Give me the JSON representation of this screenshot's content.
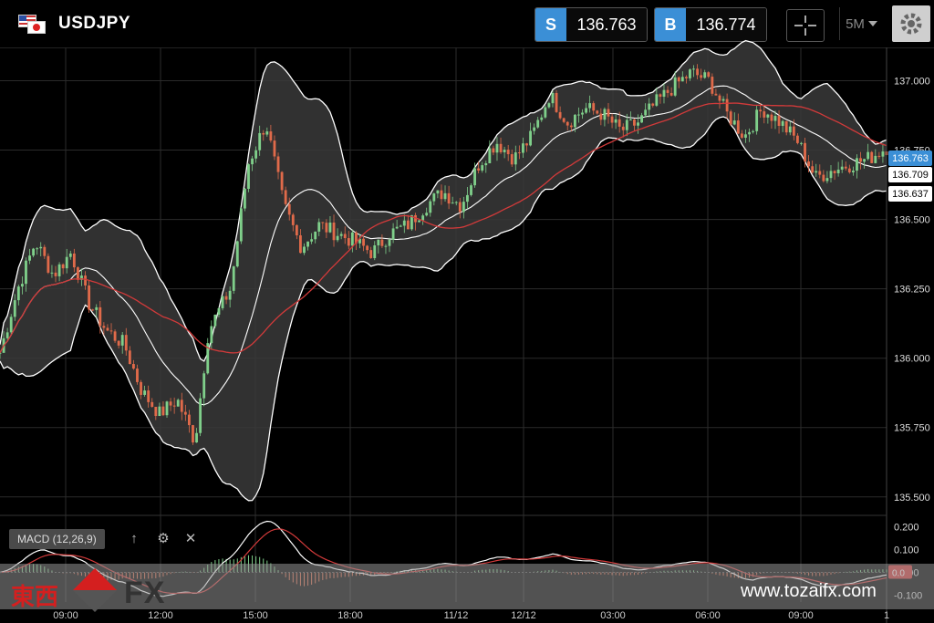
{
  "header": {
    "symbol": "USDJPY",
    "sell_tag": "S",
    "sell_price": "136.763",
    "buy_tag": "B",
    "buy_price": "136.774",
    "timeframe": "5M",
    "icons": [
      "us-flag-icon",
      "jp-flag-icon",
      "crosshair-icon",
      "gear-icon",
      "caret-down-icon"
    ]
  },
  "price_axis": {
    "ticks": [
      "137.000",
      "136.750",
      "136.500",
      "136.250",
      "136.000",
      "135.750",
      "135.500"
    ]
  },
  "price_tags": [
    {
      "value": "136.763",
      "bg": "#3b8fd6",
      "fg": "#ffffff"
    },
    {
      "value": "136.709",
      "bg": "#ffffff",
      "fg": "#000000"
    },
    {
      "value": "136.637",
      "bg": "#ffffff",
      "fg": "#000000"
    }
  ],
  "macd": {
    "label": "MACD (12,26,9)",
    "ticks": [
      "0.200",
      "0.100",
      "0.000",
      "-0.100"
    ],
    "badge": "0.0",
    "icons": [
      "arrow-up-icon",
      "gear-icon",
      "close-icon"
    ]
  },
  "time_axis": {
    "labels": [
      "09:00",
      "12:00",
      "15:00",
      "18:00",
      "11/12",
      "12/12",
      "03:00",
      "06:00",
      "09:00",
      "1"
    ]
  },
  "watermark": {
    "logo_text": "東西",
    "logo_fx": "FX",
    "url": "www.tozaifx.com"
  },
  "colors": {
    "accent": "#3b8fd6",
    "bull": "#7fcf8a",
    "bear": "#e06a4a",
    "ma": "#d23a3a",
    "band": "#ffffff"
  },
  "chart_data": {
    "type": "candlestick",
    "symbol": "USDJPY",
    "timeframe": "5M",
    "ylim": [
      135.45,
      137.12
    ],
    "yticks": [
      137.0,
      136.75,
      136.5,
      136.25,
      136.0,
      135.75,
      135.5
    ],
    "xlabels": [
      "09:00",
      "12:00",
      "15:00",
      "18:00",
      "11/12",
      "12/12",
      "03:00",
      "06:00",
      "09:00",
      "1"
    ],
    "close_path": [
      {
        "x": 0.0,
        "y": 136.02
      },
      {
        "x": 0.02,
        "y": 136.25
      },
      {
        "x": 0.04,
        "y": 136.42
      },
      {
        "x": 0.06,
        "y": 136.3
      },
      {
        "x": 0.08,
        "y": 136.38
      },
      {
        "x": 0.1,
        "y": 136.2
      },
      {
        "x": 0.12,
        "y": 136.1
      },
      {
        "x": 0.14,
        "y": 136.05
      },
      {
        "x": 0.16,
        "y": 135.88
      },
      {
        "x": 0.18,
        "y": 135.8
      },
      {
        "x": 0.2,
        "y": 135.85
      },
      {
        "x": 0.22,
        "y": 135.7
      },
      {
        "x": 0.235,
        "y": 136.1
      },
      {
        "x": 0.26,
        "y": 136.25
      },
      {
        "x": 0.28,
        "y": 136.7
      },
      {
        "x": 0.3,
        "y": 136.85
      },
      {
        "x": 0.32,
        "y": 136.55
      },
      {
        "x": 0.34,
        "y": 136.4
      },
      {
        "x": 0.36,
        "y": 136.48
      },
      {
        "x": 0.38,
        "y": 136.45
      },
      {
        "x": 0.4,
        "y": 136.42
      },
      {
        "x": 0.42,
        "y": 136.38
      },
      {
        "x": 0.44,
        "y": 136.45
      },
      {
        "x": 0.46,
        "y": 136.48
      },
      {
        "x": 0.48,
        "y": 136.55
      },
      {
        "x": 0.5,
        "y": 136.6
      },
      {
        "x": 0.52,
        "y": 136.55
      },
      {
        "x": 0.54,
        "y": 136.7
      },
      {
        "x": 0.56,
        "y": 136.78
      },
      {
        "x": 0.58,
        "y": 136.72
      },
      {
        "x": 0.6,
        "y": 136.8
      },
      {
        "x": 0.62,
        "y": 136.95
      },
      {
        "x": 0.64,
        "y": 136.85
      },
      {
        "x": 0.66,
        "y": 136.9
      },
      {
        "x": 0.68,
        "y": 136.88
      },
      {
        "x": 0.7,
        "y": 136.82
      },
      {
        "x": 0.72,
        "y": 136.85
      },
      {
        "x": 0.74,
        "y": 136.92
      },
      {
        "x": 0.76,
        "y": 136.98
      },
      {
        "x": 0.78,
        "y": 137.03
      },
      {
        "x": 0.8,
        "y": 137.0
      },
      {
        "x": 0.82,
        "y": 136.88
      },
      {
        "x": 0.84,
        "y": 136.8
      },
      {
        "x": 0.86,
        "y": 136.9
      },
      {
        "x": 0.88,
        "y": 136.85
      },
      {
        "x": 0.9,
        "y": 136.78
      },
      {
        "x": 0.92,
        "y": 136.65
      },
      {
        "x": 0.94,
        "y": 136.68
      },
      {
        "x": 0.96,
        "y": 136.7
      },
      {
        "x": 0.98,
        "y": 136.72
      },
      {
        "x": 1.0,
        "y": 136.76
      }
    ]
  }
}
